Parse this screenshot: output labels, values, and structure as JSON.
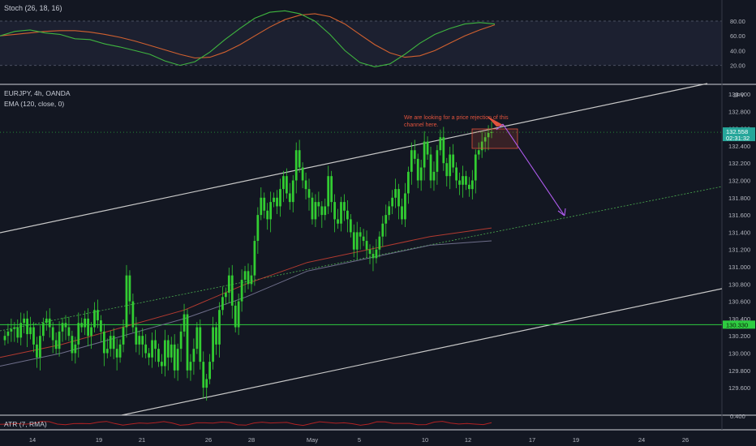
{
  "panes": {
    "stoch": {
      "title": "Stoch (26, 18, 16)"
    },
    "main": {
      "symbol_line": "EURJPY, 4h, OANDA",
      "ema_line": "EMA (120, close, 0)",
      "currency": "JPY"
    },
    "atr": {
      "title": "ATR (7, RMA)"
    }
  },
  "annotation": {
    "text": "We are looking for a price rejection of this channel here."
  },
  "badges": {
    "price": "132.558",
    "countdown": "02:31:32",
    "level": "130.330"
  },
  "colors": {
    "background": "#131722",
    "candle": "#32cd32",
    "stoch_k": "#3fb53f",
    "stoch_d": "#d2612f",
    "ema_red": "#b23a30",
    "ema_gray": "#6e6e8a",
    "channel": "#c8c8c8",
    "midline": "#4caf50",
    "level": "#2ecc40",
    "arrow": "#b05cf0",
    "note": "#e0533d",
    "atr": "#b22222"
  },
  "chart_data": {
    "type": "candlestick",
    "symbol": "EURJPY",
    "timeframe": "4h",
    "source": "OANDA",
    "x_ticks": [
      "14",
      "19",
      "21",
      "26",
      "28",
      "May",
      "5",
      "10",
      "12",
      "17",
      "19",
      "24",
      "26"
    ],
    "y_ticks": [
      133.0,
      132.8,
      132.6,
      132.4,
      132.2,
      132.0,
      131.8,
      131.6,
      131.4,
      131.2,
      131.0,
      130.8,
      130.6,
      130.4,
      130.2,
      130.0,
      129.8,
      129.6
    ],
    "y_tick_labels": [
      "133.000",
      "132.800",
      "132.600",
      "132.400",
      "132.200",
      "132.000",
      "131.800",
      "131.600",
      "131.400",
      "131.200",
      "131.000",
      "130.800",
      "130.600",
      "130.400",
      "130.200",
      "130.000",
      "129.800",
      "129.600"
    ],
    "ylim": [
      129.45,
      133.15
    ],
    "close_series": [
      130.2,
      130.25,
      130.28,
      130.3,
      130.18,
      130.35,
      130.4,
      130.22,
      130.3,
      130.1,
      129.95,
      130.2,
      130.35,
      130.4,
      130.3,
      130.15,
      130.05,
      130.25,
      130.35,
      130.3,
      130.2,
      130.0,
      130.1,
      130.35,
      130.3,
      130.4,
      130.2,
      130.3,
      130.5,
      130.38,
      130.25,
      130.0,
      130.05,
      130.2,
      130.05,
      129.95,
      130.1,
      130.3,
      130.9,
      130.6,
      130.3,
      130.1,
      130.2,
      130.1,
      130.0,
      129.95,
      130.15,
      130.05,
      129.9,
      129.85,
      130.15,
      129.95,
      130.1,
      129.8,
      130.05,
      130.25,
      130.45,
      129.8,
      129.9,
      130.05,
      130.3,
      129.9,
      129.6,
      129.7,
      129.9,
      130.3,
      130.1,
      130.5,
      130.65,
      130.7,
      130.9,
      130.55,
      130.3,
      130.6,
      130.85,
      130.95,
      130.8,
      130.9,
      131.3,
      131.6,
      131.8,
      131.65,
      131.55,
      131.75,
      131.8,
      131.7,
      131.9,
      132.05,
      131.85,
      131.75,
      132.0,
      132.35,
      132.15,
      132.0,
      131.9,
      131.8,
      131.55,
      131.75,
      131.7,
      131.6,
      131.7,
      132.05,
      131.75,
      131.55,
      131.5,
      131.75,
      131.65,
      131.55,
      131.4,
      131.2,
      131.4,
      131.35,
      131.3,
      131.2,
      131.15,
      131.1,
      131.2,
      131.35,
      131.5,
      131.6,
      131.7,
      131.8,
      131.9,
      131.7,
      131.55,
      131.85,
      132.1,
      132.35,
      132.25,
      132.0,
      132.15,
      132.45,
      132.3,
      132.0,
      132.1,
      132.35,
      132.5,
      132.2,
      132.05,
      132.3,
      132.15,
      132.0,
      131.95,
      132.05,
      131.95,
      131.9,
      132.0,
      132.3,
      132.35,
      132.45,
      132.5,
      132.55,
      132.56
    ],
    "ema_120_close_0": [
      129.95,
      130.1,
      130.3,
      130.5,
      130.8,
      131.05,
      131.2,
      131.35,
      131.45
    ],
    "ema_secondary": [
      129.85,
      130.0,
      130.2,
      130.4,
      130.65,
      130.95,
      131.1,
      131.25,
      131.3
    ],
    "horizontal_level": 130.33,
    "current_price": 132.558,
    "countdown": "02:31:32",
    "channel": {
      "upper": [
        [
          0,
          131.6
        ],
        [
          1,
          133.15
        ]
      ],
      "lower": [
        [
          0,
          129.45
        ],
        [
          1,
          130.9
        ]
      ],
      "midline": [
        [
          0,
          130.3
        ],
        [
          1,
          132.0
        ]
      ]
    },
    "projection": {
      "from": 132.65,
      "to": 131.7
    },
    "stoch": {
      "name": "Stoch (26, 18, 16)",
      "y_ticks": [
        80,
        60,
        40,
        20
      ],
      "y_tick_labels": [
        "80.00",
        "60.00",
        "40.00",
        "20.00"
      ],
      "k": [
        60,
        66,
        68,
        64,
        62,
        56,
        55,
        49,
        45,
        40,
        35,
        26,
        20,
        25,
        38,
        55,
        70,
        84,
        92,
        94,
        90,
        80,
        62,
        40,
        24,
        18,
        22,
        35,
        50,
        62,
        70,
        76,
        78,
        76
      ],
      "d": [
        60,
        62,
        64,
        66,
        67,
        67,
        65,
        62,
        58,
        53,
        47,
        41,
        35,
        30,
        31,
        38,
        48,
        60,
        72,
        82,
        88,
        90,
        86,
        76,
        62,
        48,
        37,
        31,
        33,
        40,
        50,
        60,
        68,
        75
      ]
    },
    "atr": {
      "name": "ATR (7, RMA)",
      "y_tick_label": "0.400"
    }
  }
}
